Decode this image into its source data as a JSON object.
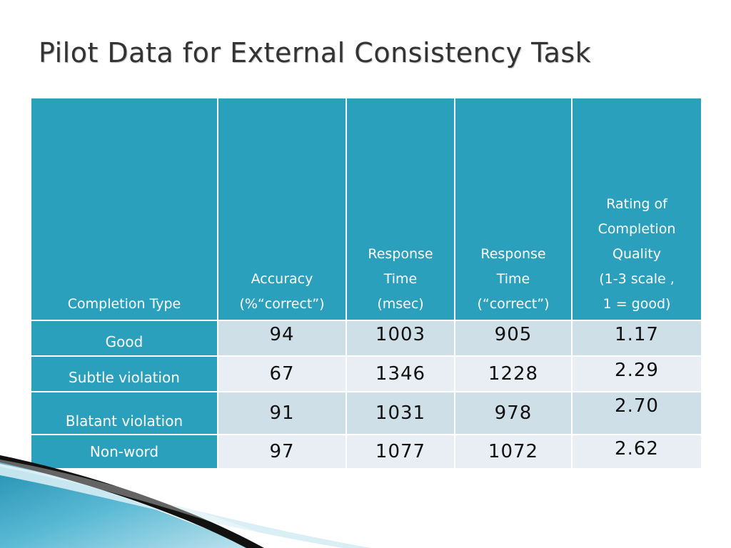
{
  "slide": {
    "title": "Pilot Data for External Consistency Task"
  },
  "table": {
    "headers": [
      "Completion Type",
      "Accuracy\n(%“correct”)",
      "Response\nTime\n(msec)",
      "Response\nTime\n(“correct”)",
      "Rating of\nCompletion\nQuality\n(1-3 scale ,\n1 = good)"
    ],
    "rows": [
      {
        "label": "Good",
        "accuracy": "94",
        "rt_msec": "1003",
        "rt_correct": "905",
        "rating": "1.17"
      },
      {
        "label": "Subtle violation",
        "accuracy": "67",
        "rt_msec": "1346",
        "rt_correct": "1228",
        "rating": "2.29"
      },
      {
        "label": "Blatant violation",
        "accuracy": "91",
        "rt_msec": "1031",
        "rt_correct": "978",
        "rating": "2.70"
      },
      {
        "label": "Non-word",
        "accuracy": "97",
        "rt_msec": "1077",
        "rt_correct": "1072",
        "rating": "2.62"
      }
    ]
  },
  "theme": {
    "header_color": "#2aa0bd",
    "row_band_dark": "#cedfe8",
    "row_band_light": "#e8eef3"
  }
}
